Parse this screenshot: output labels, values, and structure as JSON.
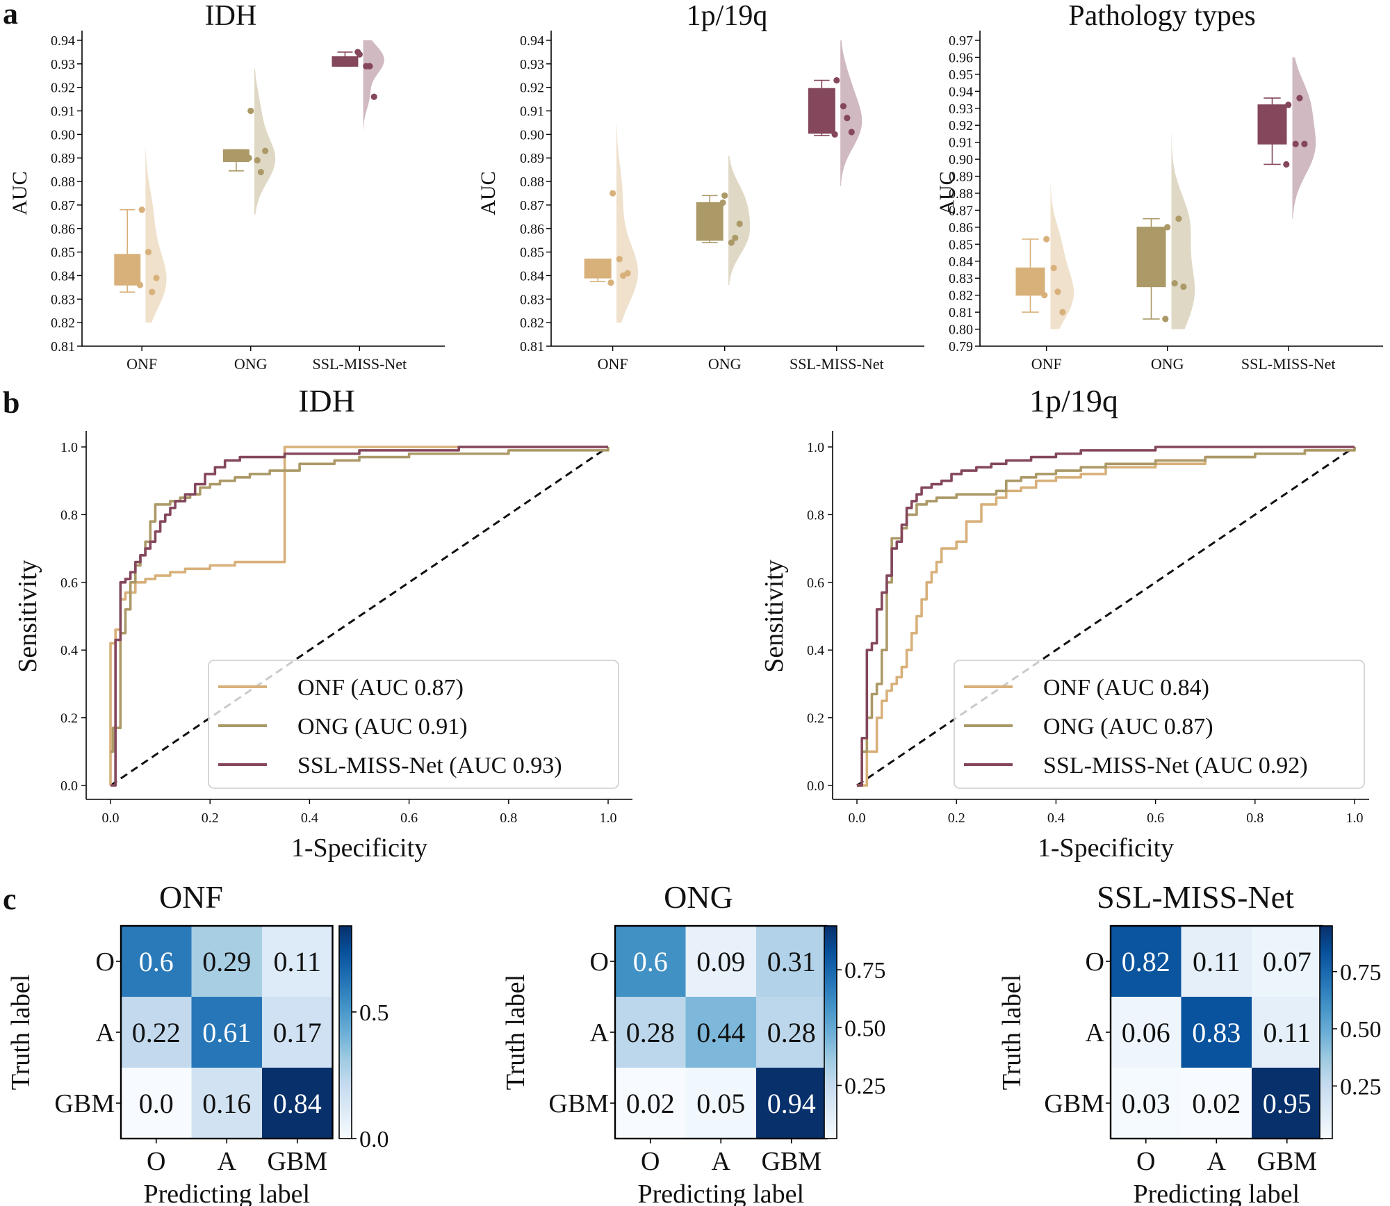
{
  "panel_labels": [
    "a",
    "b",
    "c"
  ],
  "colors": {
    "ONF": "#d8b07a",
    "ONG": "#ab9967",
    "SSL-MISS-Net": "#84475c",
    "diagonal": "#111111",
    "cmap_low": "#f7fbff",
    "cmap_high": "#08306b"
  },
  "chart_data": [
    {
      "type": "box-violin",
      "panel": "a",
      "title": "IDH",
      "ylabel": "AUC",
      "categories": [
        "ONF",
        "ONG",
        "SSL-MISS-Net"
      ],
      "ylim": [
        0.81,
        0.94
      ],
      "yticks": [
        0.81,
        0.82,
        0.83,
        0.84,
        0.85,
        0.86,
        0.87,
        0.88,
        0.89,
        0.9,
        0.91,
        0.92,
        0.93,
        0.94
      ],
      "ytick_labels": [
        "0.81",
        "0.82",
        "0.83",
        "0.84",
        "0.85",
        "0.86",
        "0.87",
        "0.88",
        "0.89",
        "0.90",
        "0.91",
        "0.92",
        "0.93",
        "0.94"
      ],
      "boxes": [
        {
          "q1": 0.836,
          "median": 0.836,
          "q3": 0.849,
          "whislo": 0.833,
          "whishi": 0.868
        },
        {
          "q1": 0.8885,
          "median": 0.8885,
          "q3": 0.8935,
          "whislo": 0.8845,
          "whishi": 0.8935
        },
        {
          "q1": 0.929,
          "median": 0.929,
          "q3": 0.933,
          "whislo": 0.929,
          "whishi": 0.935
        }
      ],
      "points": [
        [
          0.868,
          0.85,
          0.836,
          0.833,
          0.839
        ],
        [
          0.91,
          0.889,
          0.89,
          0.884,
          0.893
        ],
        [
          0.934,
          0.929,
          0.935,
          0.929,
          0.916
        ]
      ],
      "violin_range": [
        [
          0.82,
          0.894
        ],
        [
          0.866,
          0.928
        ],
        [
          0.902,
          0.94
        ]
      ]
    },
    {
      "type": "box-violin",
      "panel": "a",
      "title": "1p/19q",
      "ylabel": "AUC",
      "categories": [
        "ONF",
        "ONG",
        "SSL-MISS-Net"
      ],
      "ylim": [
        0.81,
        0.94
      ],
      "yticks": [
        0.81,
        0.82,
        0.83,
        0.84,
        0.85,
        0.86,
        0.87,
        0.88,
        0.89,
        0.9,
        0.91,
        0.92,
        0.93,
        0.94
      ],
      "ytick_labels": [
        "0.81",
        "0.82",
        "0.83",
        "0.84",
        "0.85",
        "0.86",
        "0.87",
        "0.88",
        "0.89",
        "0.90",
        "0.91",
        "0.92",
        "0.93",
        "0.94"
      ],
      "boxes": [
        {
          "q1": 0.839,
          "median": 0.839,
          "q3": 0.847,
          "whislo": 0.8375,
          "whishi": 0.847
        },
        {
          "q1": 0.855,
          "median": 0.855,
          "q3": 0.871,
          "whislo": 0.854,
          "whishi": 0.874
        },
        {
          "q1": 0.9005,
          "median": 0.9005,
          "q3": 0.9195,
          "whislo": 0.8995,
          "whishi": 0.923
        }
      ],
      "points": [
        [
          0.875,
          0.847,
          0.837,
          0.84,
          0.841
        ],
        [
          0.874,
          0.854,
          0.871,
          0.856,
          0.862
        ],
        [
          0.923,
          0.912,
          0.9,
          0.907,
          0.901
        ]
      ],
      "violin_range": [
        [
          0.82,
          0.904
        ],
        [
          0.836,
          0.891
        ],
        [
          0.878,
          0.94
        ]
      ]
    },
    {
      "type": "box-violin",
      "panel": "a",
      "title": "Pathology types",
      "ylabel": "AUC",
      "categories": [
        "ONF",
        "ONG",
        "SSL-MISS-Net"
      ],
      "ylim": [
        0.79,
        0.97
      ],
      "yticks": [
        0.79,
        0.8,
        0.81,
        0.82,
        0.83,
        0.84,
        0.85,
        0.86,
        0.87,
        0.88,
        0.89,
        0.9,
        0.91,
        0.92,
        0.93,
        0.94,
        0.95,
        0.96,
        0.97
      ],
      "ytick_labels": [
        "0.79",
        "0.80",
        "0.81",
        "0.82",
        "0.83",
        "0.84",
        "0.85",
        "0.86",
        "0.87",
        "0.88",
        "0.89",
        "0.90",
        "0.91",
        "0.92",
        "0.93",
        "0.94",
        "0.95",
        "0.96",
        "0.97"
      ],
      "boxes": [
        {
          "q1": 0.82,
          "median": 0.82,
          "q3": 0.836,
          "whislo": 0.81,
          "whishi": 0.853
        },
        {
          "q1": 0.825,
          "median": 0.825,
          "q3": 0.86,
          "whislo": 0.806,
          "whishi": 0.865
        },
        {
          "q1": 0.909,
          "median": 0.909,
          "q3": 0.932,
          "whislo": 0.897,
          "whishi": 0.936
        }
      ],
      "points": [
        [
          0.853,
          0.836,
          0.82,
          0.822,
          0.81
        ],
        [
          0.86,
          0.827,
          0.806,
          0.865,
          0.825
        ],
        [
          0.932,
          0.909,
          0.897,
          0.936,
          0.909
        ]
      ],
      "violin_range": [
        [
          0.8,
          0.885
        ],
        [
          0.8,
          0.916
        ],
        [
          0.865,
          0.96
        ]
      ]
    },
    {
      "type": "line",
      "panel": "b",
      "title": "IDH",
      "xlabel": "1-Specificity",
      "ylabel": "Sensitivity",
      "xlim": [
        0,
        1
      ],
      "ylim": [
        0,
        1
      ],
      "xticks": [
        0.0,
        0.2,
        0.4,
        0.6,
        0.8,
        1.0
      ],
      "yticks": [
        0.0,
        0.2,
        0.4,
        0.6,
        0.8,
        1.0
      ],
      "tick_labels": [
        "0.0",
        "0.2",
        "0.4",
        "0.6",
        "0.8",
        "1.0"
      ],
      "legend": [
        "ONF (AUC 0.87)",
        "ONG (AUC 0.91)",
        "SSL-MISS-Net (AUC 0.93)"
      ],
      "series": [
        {
          "name": "ONF",
          "x": [
            0,
            0,
            0.01,
            0.01,
            0.02,
            0.02,
            0.03,
            0.05,
            0.07,
            0.09,
            0.12,
            0.15,
            0.2,
            0.25,
            0.3,
            0.35,
            0.35,
            0.5,
            0.7,
            1.0
          ],
          "y": [
            0,
            0.42,
            0.42,
            0.46,
            0.46,
            0.55,
            0.57,
            0.6,
            0.61,
            0.62,
            0.63,
            0.64,
            0.65,
            0.66,
            0.66,
            0.66,
            1.0,
            1.0,
            1.0,
            1.0
          ]
        },
        {
          "name": "ONG",
          "x": [
            0,
            0.005,
            0.015,
            0.02,
            0.03,
            0.04,
            0.05,
            0.06,
            0.07,
            0.08,
            0.09,
            0.1,
            0.11,
            0.12,
            0.14,
            0.16,
            0.18,
            0.2,
            0.22,
            0.25,
            0.28,
            0.32,
            0.38,
            0.45,
            0.5,
            0.6,
            0.7,
            0.8,
            0.9,
            1.0
          ],
          "y": [
            0.1,
            0.17,
            0.17,
            0.45,
            0.52,
            0.6,
            0.65,
            0.68,
            0.72,
            0.78,
            0.83,
            0.83,
            0.83,
            0.84,
            0.85,
            0.86,
            0.88,
            0.89,
            0.9,
            0.91,
            0.92,
            0.93,
            0.95,
            0.96,
            0.97,
            0.98,
            0.98,
            0.99,
            0.99,
            1.0
          ]
        },
        {
          "name": "SSL-MISS-Net",
          "x": [
            0,
            0.01,
            0.02,
            0.03,
            0.04,
            0.05,
            0.06,
            0.07,
            0.08,
            0.09,
            0.1,
            0.11,
            0.12,
            0.13,
            0.15,
            0.17,
            0.19,
            0.21,
            0.23,
            0.26,
            0.3,
            0.35,
            0.4,
            0.5,
            0.6,
            0.7,
            0.8,
            0.9,
            1.0
          ],
          "y": [
            0,
            0.43,
            0.6,
            0.61,
            0.63,
            0.66,
            0.68,
            0.7,
            0.72,
            0.75,
            0.78,
            0.8,
            0.82,
            0.84,
            0.86,
            0.89,
            0.92,
            0.94,
            0.96,
            0.97,
            0.97,
            0.98,
            0.98,
            0.99,
            0.99,
            1.0,
            1.0,
            1.0,
            1.0
          ]
        }
      ]
    },
    {
      "type": "line",
      "panel": "b",
      "title": "1p/19q",
      "xlabel": "1-Specificity",
      "ylabel": "Sensitivity",
      "xlim": [
        0,
        1
      ],
      "ylim": [
        0,
        1
      ],
      "xticks": [
        0.0,
        0.2,
        0.4,
        0.6,
        0.8,
        1.0
      ],
      "yticks": [
        0.0,
        0.2,
        0.4,
        0.6,
        0.8,
        1.0
      ],
      "tick_labels": [
        "0.0",
        "0.2",
        "0.4",
        "0.6",
        "0.8",
        "1.0"
      ],
      "legend": [
        "ONF (AUC 0.84)",
        "ONG (AUC 0.87)",
        "SSL-MISS-Net (AUC 0.92)"
      ],
      "series": [
        {
          "name": "ONF",
          "x": [
            0,
            0.02,
            0.04,
            0.05,
            0.06,
            0.07,
            0.08,
            0.09,
            0.1,
            0.11,
            0.12,
            0.13,
            0.14,
            0.15,
            0.16,
            0.17,
            0.18,
            0.2,
            0.22,
            0.25,
            0.28,
            0.3,
            0.33,
            0.36,
            0.4,
            0.45,
            0.5,
            0.6,
            0.7,
            0.8,
            0.9,
            1.0
          ],
          "y": [
            0,
            0.1,
            0.2,
            0.25,
            0.28,
            0.3,
            0.32,
            0.35,
            0.4,
            0.45,
            0.5,
            0.55,
            0.6,
            0.63,
            0.66,
            0.7,
            0.7,
            0.72,
            0.78,
            0.83,
            0.85,
            0.87,
            0.88,
            0.9,
            0.91,
            0.92,
            0.94,
            0.95,
            0.97,
            0.98,
            0.99,
            1.0
          ]
        },
        {
          "name": "ONG",
          "x": [
            0,
            0.01,
            0.02,
            0.03,
            0.04,
            0.05,
            0.06,
            0.07,
            0.08,
            0.09,
            0.1,
            0.12,
            0.14,
            0.16,
            0.18,
            0.2,
            0.22,
            0.25,
            0.28,
            0.3,
            0.33,
            0.36,
            0.4,
            0.45,
            0.5,
            0.6,
            0.7,
            0.8,
            0.9,
            1.0
          ],
          "y": [
            0,
            0.1,
            0.2,
            0.27,
            0.3,
            0.4,
            0.6,
            0.73,
            0.73,
            0.76,
            0.8,
            0.83,
            0.84,
            0.85,
            0.85,
            0.86,
            0.86,
            0.86,
            0.87,
            0.9,
            0.91,
            0.92,
            0.93,
            0.94,
            0.95,
            0.96,
            0.97,
            0.98,
            0.99,
            1.0
          ]
        },
        {
          "name": "SSL-MISS-Net",
          "x": [
            0,
            0.01,
            0.02,
            0.03,
            0.04,
            0.05,
            0.06,
            0.07,
            0.08,
            0.09,
            0.1,
            0.11,
            0.12,
            0.13,
            0.15,
            0.17,
            0.19,
            0.21,
            0.24,
            0.27,
            0.3,
            0.35,
            0.4,
            0.45,
            0.5,
            0.6,
            0.7,
            0.8,
            0.9,
            1.0
          ],
          "y": [
            0,
            0.14,
            0.4,
            0.42,
            0.52,
            0.57,
            0.62,
            0.7,
            0.72,
            0.77,
            0.82,
            0.84,
            0.86,
            0.88,
            0.89,
            0.9,
            0.92,
            0.93,
            0.94,
            0.95,
            0.96,
            0.97,
            0.98,
            0.99,
            0.99,
            1.0,
            1.0,
            1.0,
            1.0,
            1.0
          ]
        }
      ]
    },
    {
      "type": "heatmap",
      "panel": "c",
      "title": "ONF",
      "xlabel": "Predicting label",
      "ylabel": "Truth label",
      "labels": [
        "O",
        "A",
        "GBM"
      ],
      "matrix": [
        [
          0.6,
          0.29,
          0.11
        ],
        [
          0.22,
          0.61,
          0.17
        ],
        [
          0.0,
          0.16,
          0.84
        ]
      ],
      "cell_text": [
        [
          "0.6",
          "0.29",
          "0.11"
        ],
        [
          "0.22",
          "0.61",
          "0.17"
        ],
        [
          "0.0",
          "0.16",
          "0.84"
        ]
      ],
      "vmin": 0.0,
      "vmax": 0.84,
      "colorbar_ticks": [
        0.0,
        0.5
      ],
      "colorbar_labels": [
        "0.0",
        "0.5"
      ]
    },
    {
      "type": "heatmap",
      "panel": "c",
      "title": "ONG",
      "xlabel": "Predicting label",
      "ylabel": "Truth label",
      "labels": [
        "O",
        "A",
        "GBM"
      ],
      "matrix": [
        [
          0.6,
          0.09,
          0.31
        ],
        [
          0.28,
          0.44,
          0.28
        ],
        [
          0.02,
          0.05,
          0.94
        ]
      ],
      "cell_text": [
        [
          "0.6",
          "0.09",
          "0.31"
        ],
        [
          "0.28",
          "0.44",
          "0.28"
        ],
        [
          "0.02",
          "0.05",
          "0.94"
        ]
      ],
      "vmin": 0.02,
      "vmax": 0.94,
      "colorbar_ticks": [
        0.25,
        0.5,
        0.75
      ],
      "colorbar_labels": [
        "0.25",
        "0.50",
        "0.75"
      ]
    },
    {
      "type": "heatmap",
      "panel": "c",
      "title": "SSL-MISS-Net",
      "xlabel": "Predicting label",
      "ylabel": "Truth label",
      "labels": [
        "O",
        "A",
        "GBM"
      ],
      "matrix": [
        [
          0.82,
          0.11,
          0.07
        ],
        [
          0.06,
          0.83,
          0.11
        ],
        [
          0.03,
          0.02,
          0.95
        ]
      ],
      "cell_text": [
        [
          "0.82",
          "0.11",
          "0.07"
        ],
        [
          "0.06",
          "0.83",
          "0.11"
        ],
        [
          "0.03",
          "0.02",
          "0.95"
        ]
      ],
      "vmin": 0.02,
      "vmax": 0.95,
      "colorbar_ticks": [
        0.25,
        0.5,
        0.75
      ],
      "colorbar_labels": [
        "0.25",
        "0.50",
        "0.75"
      ]
    }
  ]
}
